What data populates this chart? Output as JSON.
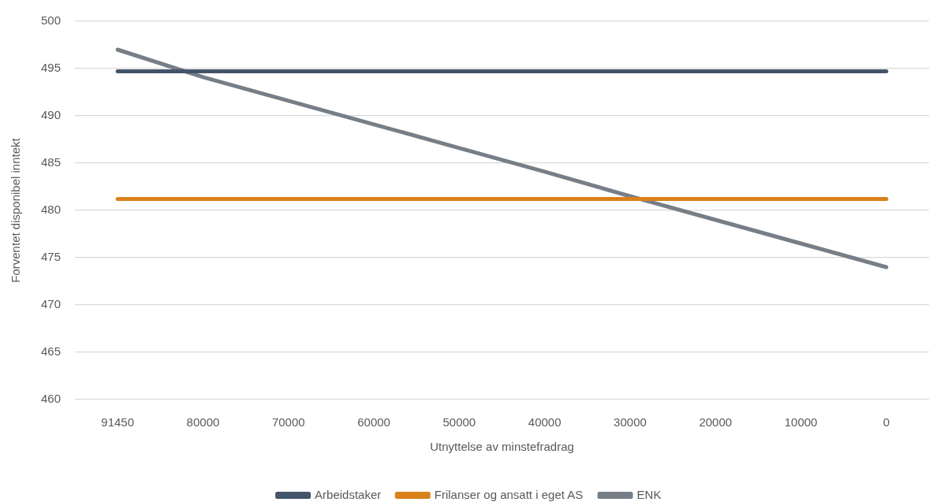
{
  "chart_data": {
    "type": "line",
    "xlabel": "Utnyttelse av minstefradrag",
    "ylabel": "Forventet disponibel inntekt",
    "categories": [
      "91450",
      "80000",
      "70000",
      "60000",
      "50000",
      "40000",
      "30000",
      "20000",
      "10000",
      "0"
    ],
    "series": [
      {
        "name": "Arbeidstaker",
        "color": "#44546a",
        "values": [
          494.7,
          494.7,
          494.7,
          494.7,
          494.7,
          494.7,
          494.7,
          494.7,
          494.7,
          494.7
        ]
      },
      {
        "name": "Frilanser og ansatt i eget AS",
        "color": "#da801b",
        "values": [
          481.2,
          481.2,
          481.2,
          481.2,
          481.2,
          481.2,
          481.2,
          481.2,
          481.2,
          481.2
        ]
      },
      {
        "name": "ENK",
        "color": "#767f87",
        "values": [
          497.0,
          494.1,
          491.6,
          489.1,
          486.6,
          484.1,
          481.5,
          479.0,
          476.5,
          474.0
        ]
      }
    ],
    "ylim": [
      460,
      500
    ],
    "yticks": [
      460,
      465,
      470,
      475,
      480,
      485,
      490,
      495,
      500
    ],
    "grid": "y",
    "legend": "bottom",
    "marker": "none",
    "line_style": "solid"
  }
}
